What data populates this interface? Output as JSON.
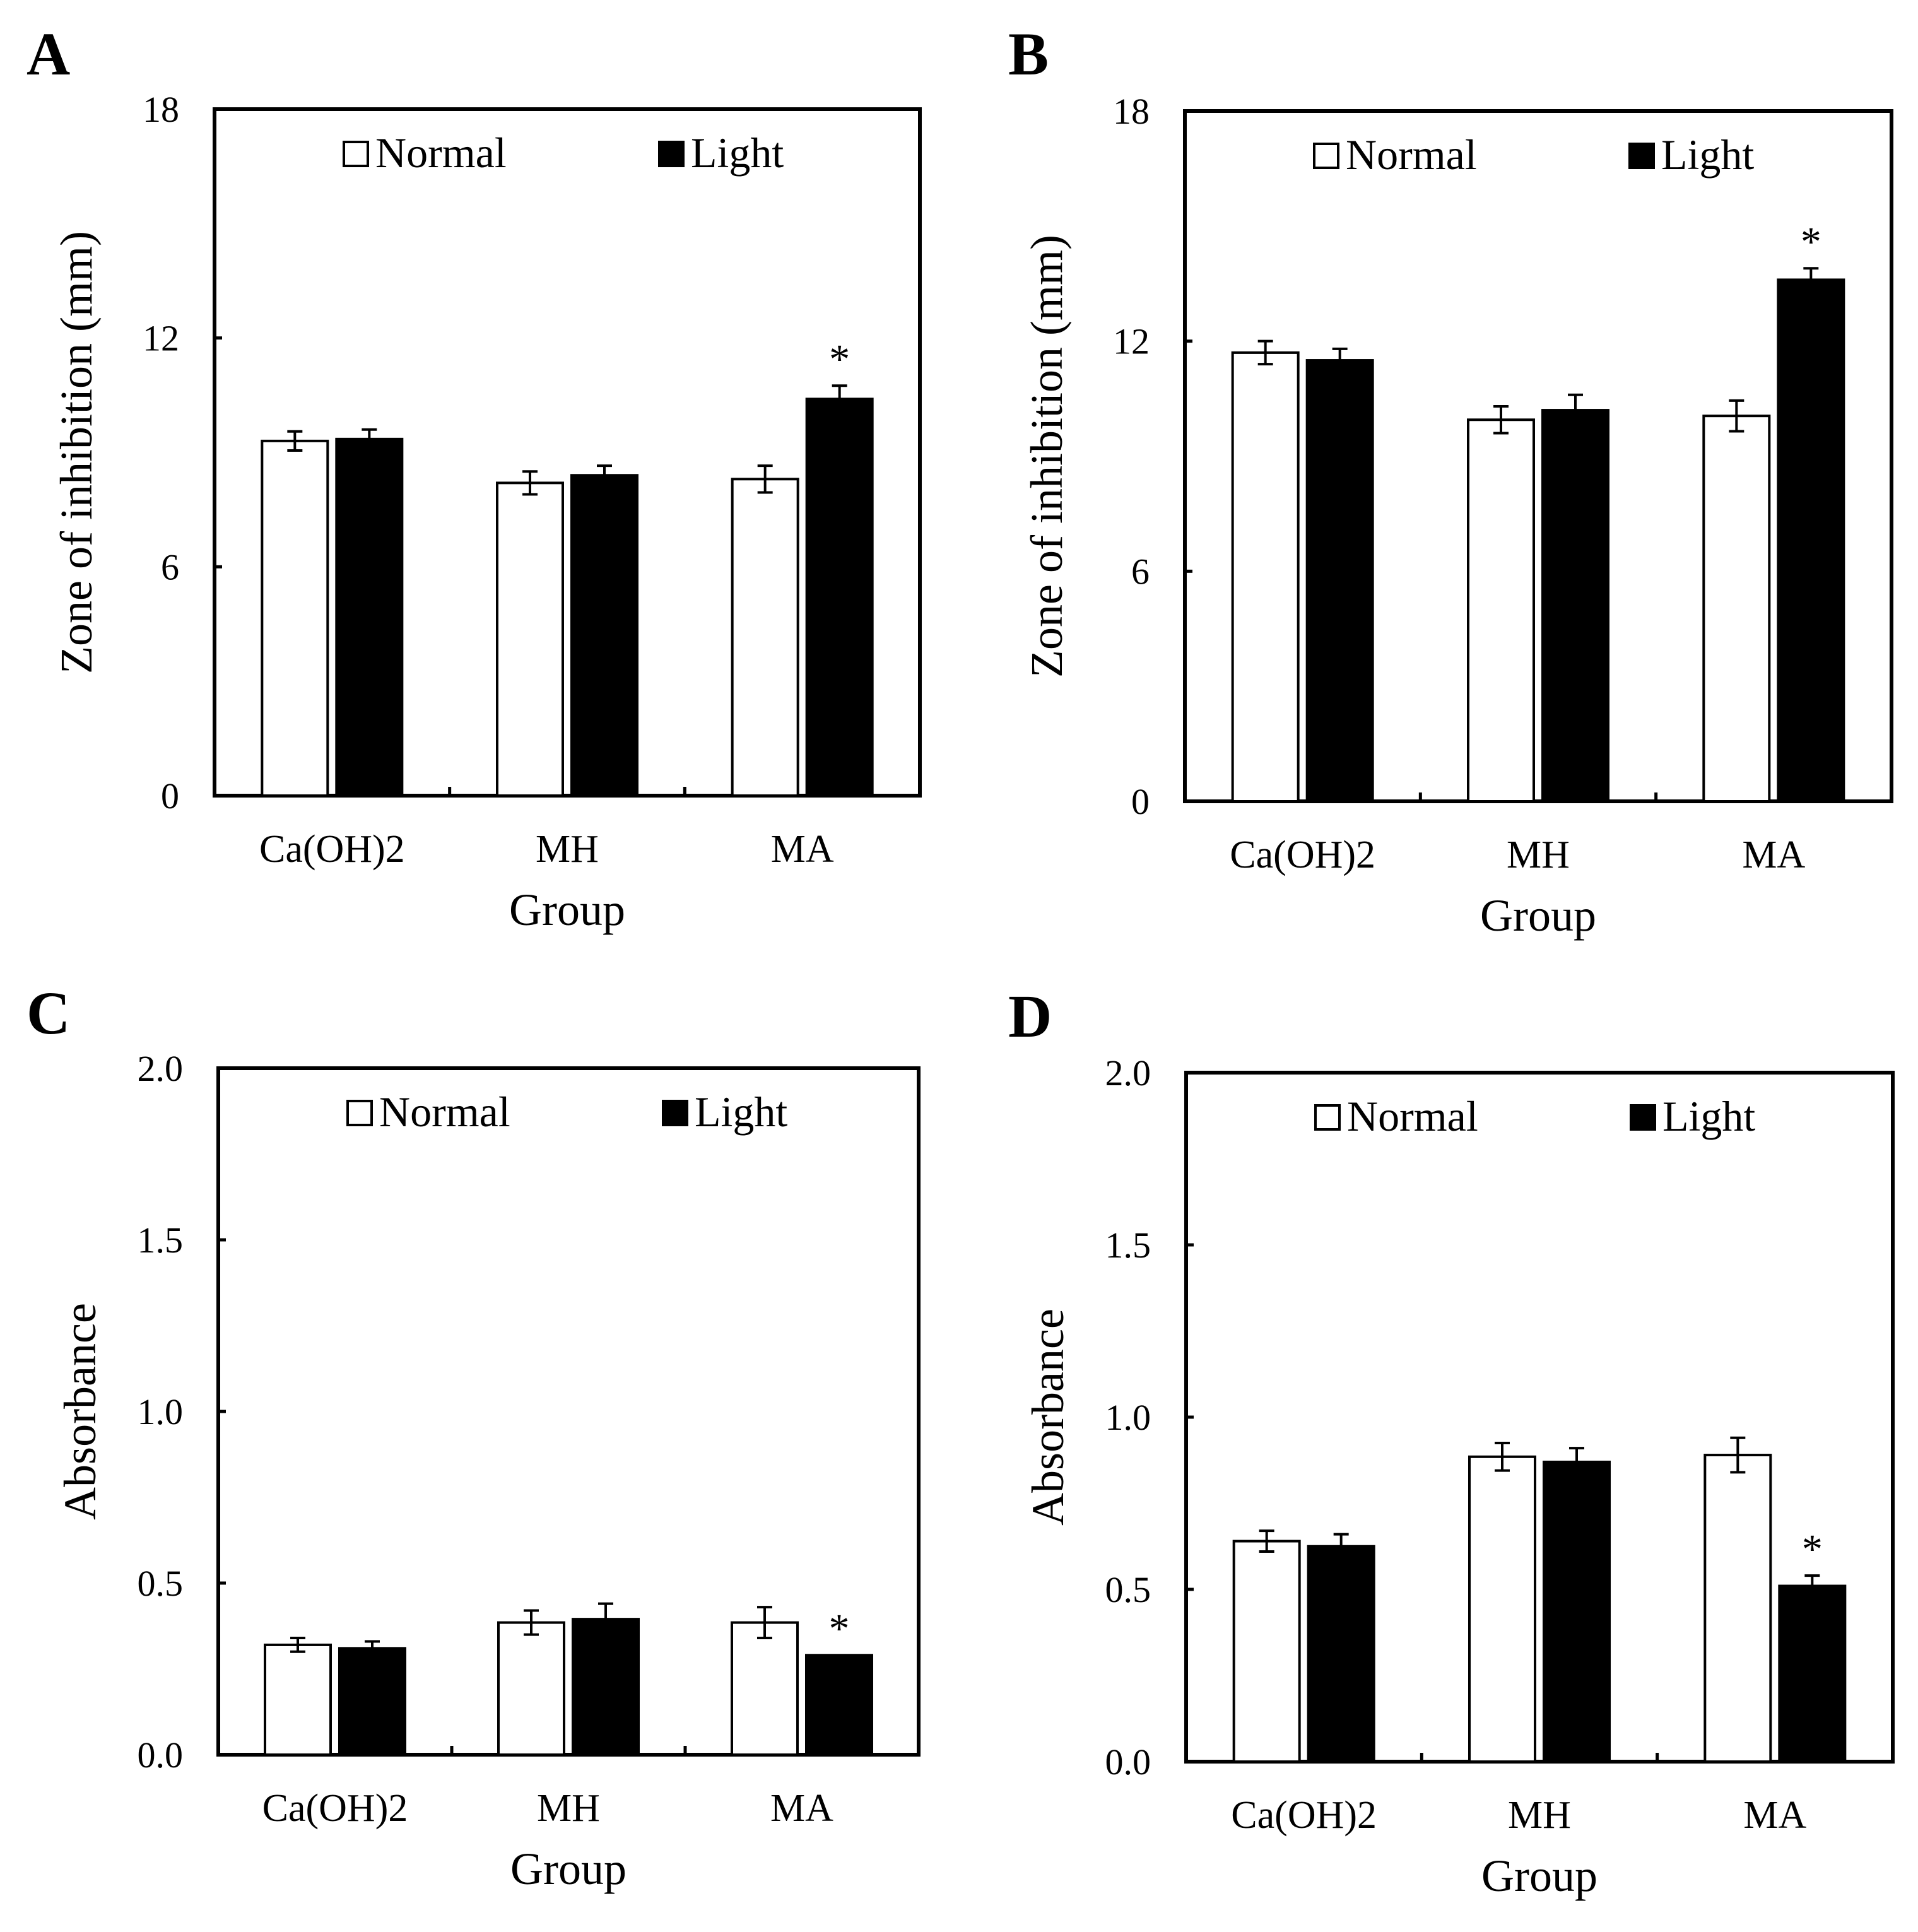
{
  "chart_data": [
    {
      "panel_label": "A",
      "type": "bar",
      "categories": [
        "Ca(OH)2",
        "MH",
        "MA"
      ],
      "series": [
        {
          "name": "Normal",
          "values": [
            9.3,
            8.2,
            8.3
          ],
          "errors": [
            0.25,
            0.3,
            0.35
          ],
          "color": "#ffffff"
        },
        {
          "name": "Light",
          "values": [
            9.35,
            8.4,
            10.4
          ],
          "errors": [
            0.25,
            0.25,
            0.35
          ],
          "color": "#000000"
        }
      ],
      "significance": [
        {
          "category": "MA",
          "series": "Light",
          "mark": "*"
        }
      ],
      "xlabel": "Group",
      "ylabel": "Zone of inhibition (mm)",
      "ylim": [
        0,
        18
      ],
      "yticks": [
        "0",
        "6",
        "12",
        "18"
      ],
      "legend": {
        "position": "top",
        "entries": [
          "Normal",
          "Light"
        ]
      }
    },
    {
      "panel_label": "B",
      "type": "bar",
      "categories": [
        "Ca(OH)2",
        "MH",
        "MA"
      ],
      "series": [
        {
          "name": "Normal",
          "values": [
            11.7,
            9.95,
            10.05
          ],
          "errors": [
            0.3,
            0.35,
            0.4
          ],
          "color": "#ffffff"
        },
        {
          "name": "Light",
          "values": [
            11.5,
            10.2,
            13.6
          ],
          "errors": [
            0.3,
            0.4,
            0.3
          ],
          "color": "#000000"
        }
      ],
      "significance": [
        {
          "category": "MA",
          "series": "Light",
          "mark": "*"
        }
      ],
      "xlabel": "Group",
      "ylabel": "Zone of inhibition (mm)",
      "ylim": [
        0,
        18
      ],
      "yticks": [
        "0",
        "6",
        "12",
        "18"
      ],
      "legend": {
        "position": "top",
        "entries": [
          "Normal",
          "Light"
        ]
      }
    },
    {
      "panel_label": "C",
      "type": "bar",
      "categories": [
        "Ca(OH)2",
        "MH",
        "MA"
      ],
      "series": [
        {
          "name": "Normal",
          "values": [
            0.32,
            0.385,
            0.385
          ],
          "errors": [
            0.02,
            0.035,
            0.045
          ],
          "color": "#ffffff"
        },
        {
          "name": "Light",
          "values": [
            0.31,
            0.395,
            0.29
          ],
          "errors": [
            0.02,
            0.045,
            0.0
          ],
          "color": "#000000"
        }
      ],
      "significance": [
        {
          "category": "MA",
          "series": "Light",
          "mark": "*"
        }
      ],
      "xlabel": "Group",
      "ylabel": "Absorbance",
      "ylim": [
        0,
        2.0
      ],
      "yticks": [
        "0.0",
        "0.5",
        "1.0",
        "1.5",
        "2.0"
      ],
      "legend": {
        "position": "top",
        "entries": [
          "Normal",
          "Light"
        ]
      }
    },
    {
      "panel_label": "D",
      "type": "bar",
      "categories": [
        "Ca(OH)2",
        "MH",
        "MA"
      ],
      "series": [
        {
          "name": "Normal",
          "values": [
            0.64,
            0.885,
            0.89
          ],
          "errors": [
            0.03,
            0.04,
            0.05
          ],
          "color": "#ffffff"
        },
        {
          "name": "Light",
          "values": [
            0.625,
            0.87,
            0.51
          ],
          "errors": [
            0.035,
            0.04,
            0.03
          ],
          "color": "#000000"
        }
      ],
      "significance": [
        {
          "category": "MA",
          "series": "Light",
          "mark": "*"
        }
      ],
      "xlabel": "Group",
      "ylabel": "Absorbance",
      "ylim": [
        0,
        2.0
      ],
      "yticks": [
        "0.0",
        "0.5",
        "1.0",
        "1.5",
        "2.0"
      ],
      "legend": {
        "position": "top",
        "entries": [
          "Normal",
          "Light"
        ]
      }
    }
  ]
}
